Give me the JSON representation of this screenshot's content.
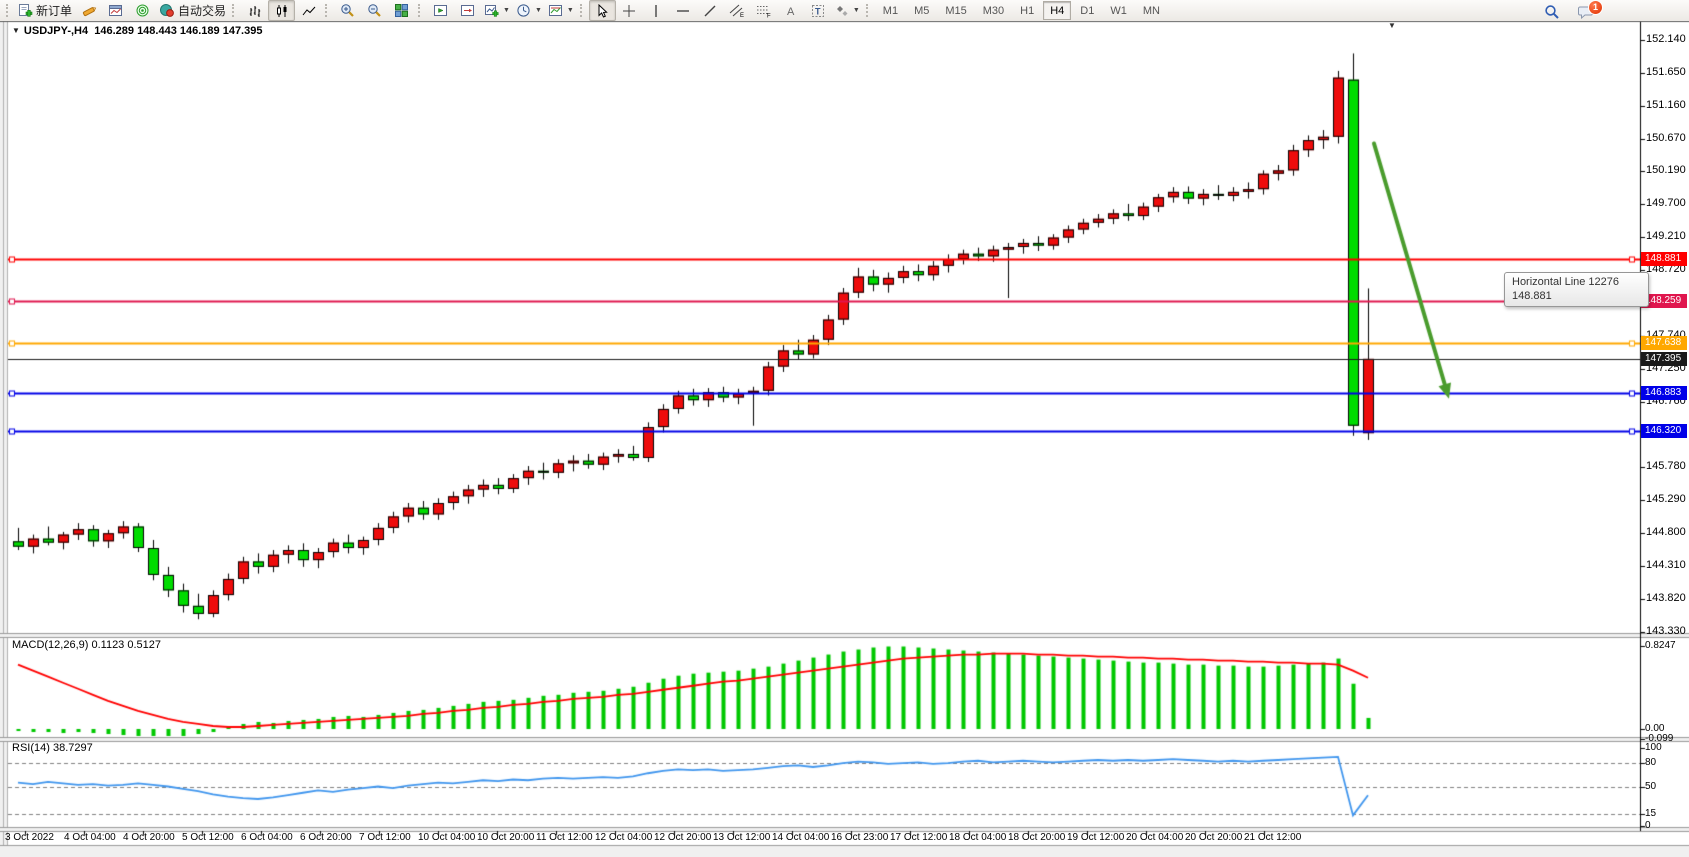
{
  "toolbar": {
    "new_order_label": "新订单",
    "autotrading_label": "自动交易",
    "timeframes": [
      "M1",
      "M5",
      "M15",
      "M30",
      "H1",
      "H4",
      "D1",
      "W1",
      "MN"
    ],
    "active_timeframe": "H4",
    "notification_count": "1"
  },
  "chart": {
    "symbol_period": "USDJPY-,H4",
    "ohlc": "146.289 148.443 146.189 147.395"
  },
  "indicators": {
    "macd_label": "MACD(12,26,9) 0.1123 0.5127",
    "rsi_label": "RSI(14) 38.7297"
  },
  "tooltip": {
    "line1": "Horizontal Line 12276",
    "line2": "148.881"
  },
  "chart_data": {
    "type": "candlestick",
    "symbol": "USDJPY",
    "timeframe": "H4",
    "current_ohlc": {
      "open": 146.289,
      "high": 148.443,
      "low": 146.189,
      "close": 147.395
    },
    "colors": {
      "up": "#ee0c0c",
      "down": "#00dc00",
      "outline": "#000000",
      "axis": "#000000",
      "divider": "#9a9a9a",
      "arrow": "#4a9c2d",
      "rsi": "#4096ee",
      "macd_hist": "#00c800",
      "macd_signal": "#ff0000"
    },
    "price_ticks": [
      152.14,
      151.65,
      151.16,
      150.67,
      150.19,
      149.7,
      149.21,
      148.72,
      147.74,
      147.25,
      146.76,
      145.78,
      145.29,
      144.8,
      144.31,
      143.82,
      143.33
    ],
    "hlines": [
      {
        "price": 148.881,
        "label": "148.881",
        "color": "#ff0000",
        "width": 2,
        "marker": true
      },
      {
        "price": 148.259,
        "label": "148.259",
        "color": "#e0164e",
        "width": 2,
        "marker": true
      },
      {
        "price": 147.638,
        "label": "147.638",
        "color": "#ffa800",
        "width": 2,
        "marker": true
      },
      {
        "price": 147.395,
        "label": "147.395",
        "color": "#1a1a1a",
        "width": 1,
        "marker": false
      },
      {
        "price": 146.883,
        "label": "146.883",
        "color": "#0000e8",
        "width": 2,
        "marker": true
      },
      {
        "price": 146.32,
        "label": "146.320",
        "color": "#0000e8",
        "width": 2,
        "marker": true
      }
    ],
    "time_labels": [
      "3 Oct 2022",
      "4 Oct 04:00",
      "4 Oct 20:00",
      "5 Oct 12:00",
      "6 Oct 04:00",
      "6 Oct 20:00",
      "7 Oct 12:00",
      "10 Oct 04:00",
      "10 Oct 20:00",
      "11 Oct 12:00",
      "12 Oct 04:00",
      "12 Oct 20:00",
      "13 Oct 12:00",
      "14 Oct 04:00",
      "16 Oct 23:00",
      "17 Oct 12:00",
      "18 Oct 04:00",
      "18 Oct 20:00",
      "19 Oct 12:00",
      "20 Oct 04:00",
      "20 Oct 20:00",
      "21 Oct 12:00"
    ],
    "candles": [
      [
        144.68,
        144.88,
        144.55,
        144.6
      ],
      [
        144.6,
        144.78,
        144.5,
        144.72
      ],
      [
        144.72,
        144.9,
        144.62,
        144.66
      ],
      [
        144.66,
        144.82,
        144.56,
        144.78
      ],
      [
        144.78,
        144.95,
        144.7,
        144.86
      ],
      [
        144.86,
        144.92,
        144.6,
        144.68
      ],
      [
        144.68,
        144.85,
        144.58,
        144.8
      ],
      [
        144.8,
        144.98,
        144.72,
        144.9
      ],
      [
        144.9,
        144.95,
        144.52,
        144.58
      ],
      [
        144.58,
        144.7,
        144.1,
        144.18
      ],
      [
        144.18,
        144.3,
        143.85,
        143.95
      ],
      [
        143.95,
        144.05,
        143.62,
        143.72
      ],
      [
        143.72,
        143.9,
        143.52,
        143.6
      ],
      [
        143.6,
        143.95,
        143.55,
        143.88
      ],
      [
        143.88,
        144.2,
        143.8,
        144.12
      ],
      [
        144.12,
        144.45,
        144.05,
        144.38
      ],
      [
        144.38,
        144.5,
        144.2,
        144.3
      ],
      [
        144.3,
        144.55,
        144.22,
        144.48
      ],
      [
        144.48,
        144.62,
        144.35,
        144.55
      ],
      [
        144.55,
        144.65,
        144.3,
        144.4
      ],
      [
        144.4,
        144.58,
        144.28,
        144.52
      ],
      [
        144.52,
        144.72,
        144.44,
        144.66
      ],
      [
        144.66,
        144.78,
        144.5,
        144.58
      ],
      [
        144.58,
        144.75,
        144.48,
        144.7
      ],
      [
        144.7,
        144.95,
        144.62,
        144.88
      ],
      [
        144.88,
        145.12,
        144.8,
        145.05
      ],
      [
        145.05,
        145.25,
        144.96,
        145.18
      ],
      [
        145.18,
        145.28,
        145.0,
        145.08
      ],
      [
        145.08,
        145.32,
        145.0,
        145.25
      ],
      [
        145.25,
        145.42,
        145.15,
        145.35
      ],
      [
        145.35,
        145.52,
        145.24,
        145.45
      ],
      [
        145.45,
        145.6,
        145.34,
        145.52
      ],
      [
        145.52,
        145.62,
        145.38,
        145.46
      ],
      [
        145.46,
        145.68,
        145.4,
        145.62
      ],
      [
        145.62,
        145.8,
        145.52,
        145.73
      ],
      [
        145.73,
        145.85,
        145.6,
        145.7
      ],
      [
        145.7,
        145.9,
        145.62,
        145.84
      ],
      [
        145.84,
        145.96,
        145.72,
        145.88
      ],
      [
        145.88,
        145.98,
        145.76,
        145.82
      ],
      [
        145.82,
        146.0,
        145.74,
        145.94
      ],
      [
        145.94,
        146.05,
        145.85,
        145.98
      ],
      [
        145.98,
        146.1,
        145.88,
        145.92
      ],
      [
        145.92,
        146.45,
        145.86,
        146.38
      ],
      [
        146.38,
        146.72,
        146.3,
        146.65
      ],
      [
        146.65,
        146.92,
        146.58,
        146.85
      ],
      [
        146.85,
        146.95,
        146.7,
        146.78
      ],
      [
        146.78,
        146.96,
        146.68,
        146.9
      ],
      [
        146.9,
        146.98,
        146.75,
        146.82
      ],
      [
        146.82,
        146.95,
        146.72,
        146.88
      ],
      [
        146.88,
        146.98,
        146.4,
        146.92
      ],
      [
        146.92,
        147.35,
        146.85,
        147.28
      ],
      [
        147.28,
        147.6,
        147.2,
        147.52
      ],
      [
        147.52,
        147.68,
        147.38,
        147.46
      ],
      [
        147.46,
        147.75,
        147.4,
        147.68
      ],
      [
        147.68,
        148.05,
        147.6,
        147.98
      ],
      [
        147.98,
        148.45,
        147.9,
        148.38
      ],
      [
        148.38,
        148.75,
        148.3,
        148.62
      ],
      [
        148.62,
        148.72,
        148.4,
        148.5
      ],
      [
        148.5,
        148.68,
        148.38,
        148.6
      ],
      [
        148.6,
        148.78,
        148.52,
        148.7
      ],
      [
        148.7,
        148.8,
        148.55,
        148.64
      ],
      [
        148.64,
        148.85,
        148.56,
        148.78
      ],
      [
        148.78,
        148.95,
        148.68,
        148.88
      ],
      [
        148.88,
        149.02,
        148.8,
        148.96
      ],
      [
        148.96,
        149.05,
        148.85,
        148.92
      ],
      [
        148.92,
        149.08,
        148.84,
        149.02
      ],
      [
        149.02,
        149.12,
        148.3,
        149.06
      ],
      [
        149.06,
        149.18,
        148.96,
        149.12
      ],
      [
        149.12,
        149.22,
        149.0,
        149.08
      ],
      [
        149.08,
        149.25,
        149.02,
        149.2
      ],
      [
        149.2,
        149.38,
        149.12,
        149.32
      ],
      [
        149.32,
        149.48,
        149.25,
        149.42
      ],
      [
        149.42,
        149.55,
        149.35,
        149.48
      ],
      [
        149.48,
        149.62,
        149.4,
        149.56
      ],
      [
        149.56,
        149.7,
        149.45,
        149.52
      ],
      [
        149.52,
        149.72,
        149.46,
        149.66
      ],
      [
        149.66,
        149.85,
        149.58,
        149.8
      ],
      [
        149.8,
        149.95,
        149.72,
        149.88
      ],
      [
        149.88,
        149.96,
        149.7,
        149.78
      ],
      [
        149.78,
        149.92,
        149.68,
        149.85
      ],
      [
        149.85,
        149.98,
        149.76,
        149.82
      ],
      [
        149.82,
        149.95,
        149.74,
        149.88
      ],
      [
        149.88,
        150.02,
        149.78,
        149.92
      ],
      [
        149.92,
        150.2,
        149.84,
        150.15
      ],
      [
        150.15,
        150.28,
        150.05,
        150.2
      ],
      [
        150.2,
        150.58,
        150.12,
        150.5
      ],
      [
        150.5,
        150.72,
        150.4,
        150.65
      ],
      [
        150.65,
        150.8,
        150.52,
        150.7
      ],
      [
        150.7,
        151.68,
        150.6,
        151.58
      ],
      [
        151.55,
        151.94,
        146.25,
        146.4
      ],
      [
        146.289,
        148.443,
        146.189,
        147.395
      ]
    ],
    "macd": {
      "ticks": [
        "0.8247",
        "0.00",
        "-0.099"
      ],
      "tick_values": [
        0.8247,
        0,
        -0.099
      ],
      "hist": [
        -0.02,
        -0.03,
        -0.03,
        -0.04,
        -0.03,
        -0.04,
        -0.05,
        -0.06,
        -0.07,
        -0.09,
        -0.08,
        -0.07,
        -0.05,
        -0.03,
        0.02,
        0.05,
        0.07,
        0.06,
        0.08,
        0.09,
        0.1,
        0.12,
        0.13,
        0.12,
        0.14,
        0.16,
        0.18,
        0.19,
        0.21,
        0.23,
        0.25,
        0.27,
        0.28,
        0.29,
        0.31,
        0.33,
        0.34,
        0.36,
        0.37,
        0.38,
        0.4,
        0.42,
        0.46,
        0.5,
        0.53,
        0.55,
        0.56,
        0.57,
        0.58,
        0.6,
        0.62,
        0.65,
        0.68,
        0.71,
        0.74,
        0.77,
        0.79,
        0.81,
        0.82,
        0.82,
        0.81,
        0.8,
        0.79,
        0.78,
        0.77,
        0.76,
        0.75,
        0.74,
        0.73,
        0.72,
        0.71,
        0.7,
        0.69,
        0.68,
        0.67,
        0.66,
        0.66,
        0.65,
        0.64,
        0.64,
        0.63,
        0.63,
        0.62,
        0.62,
        0.63,
        0.64,
        0.65,
        0.66,
        0.7,
        0.45,
        0.11
      ],
      "signal": [
        0.64,
        0.58,
        0.52,
        0.46,
        0.4,
        0.34,
        0.28,
        0.23,
        0.18,
        0.14,
        0.1,
        0.07,
        0.05,
        0.03,
        0.02,
        0.02,
        0.03,
        0.04,
        0.05,
        0.06,
        0.07,
        0.08,
        0.09,
        0.1,
        0.11,
        0.12,
        0.13,
        0.15,
        0.16,
        0.18,
        0.19,
        0.21,
        0.22,
        0.24,
        0.25,
        0.27,
        0.28,
        0.3,
        0.31,
        0.32,
        0.34,
        0.35,
        0.37,
        0.39,
        0.41,
        0.43,
        0.45,
        0.47,
        0.48,
        0.5,
        0.52,
        0.54,
        0.56,
        0.58,
        0.6,
        0.62,
        0.64,
        0.66,
        0.68,
        0.7,
        0.71,
        0.72,
        0.73,
        0.74,
        0.74,
        0.75,
        0.75,
        0.75,
        0.74,
        0.74,
        0.73,
        0.73,
        0.72,
        0.72,
        0.71,
        0.71,
        0.7,
        0.7,
        0.69,
        0.69,
        0.68,
        0.68,
        0.67,
        0.67,
        0.66,
        0.66,
        0.65,
        0.65,
        0.64,
        0.58,
        0.51
      ]
    },
    "rsi": {
      "ticks": [
        "100",
        "80",
        "50",
        "15",
        "0"
      ],
      "tick_values": [
        100,
        80,
        50,
        15,
        0
      ],
      "levels": [
        80,
        50,
        15
      ],
      "values": [
        55,
        53,
        56,
        54,
        52,
        53,
        51,
        52,
        54,
        52,
        50,
        47,
        44,
        40,
        37,
        35,
        34,
        36,
        39,
        42,
        45,
        43,
        46,
        48,
        50,
        48,
        51,
        53,
        55,
        54,
        56,
        58,
        57,
        59,
        58,
        60,
        61,
        60,
        61,
        62,
        61,
        63,
        67,
        70,
        72,
        71,
        72,
        70,
        71,
        72,
        74,
        76,
        77,
        75,
        77,
        80,
        82,
        81,
        79,
        80,
        81,
        79,
        80,
        82,
        83,
        81,
        82,
        83,
        82,
        81,
        82,
        83,
        84,
        83,
        84,
        83,
        84,
        85,
        84,
        83,
        82,
        83,
        82,
        83,
        84,
        85,
        86,
        87,
        88,
        13,
        38.7
      ]
    },
    "arrow": {
      "from_bar": 90.4,
      "from_price": 150.6,
      "to_bar": 95.4,
      "to_price": 146.8,
      "color": "#4a9c2d"
    }
  }
}
